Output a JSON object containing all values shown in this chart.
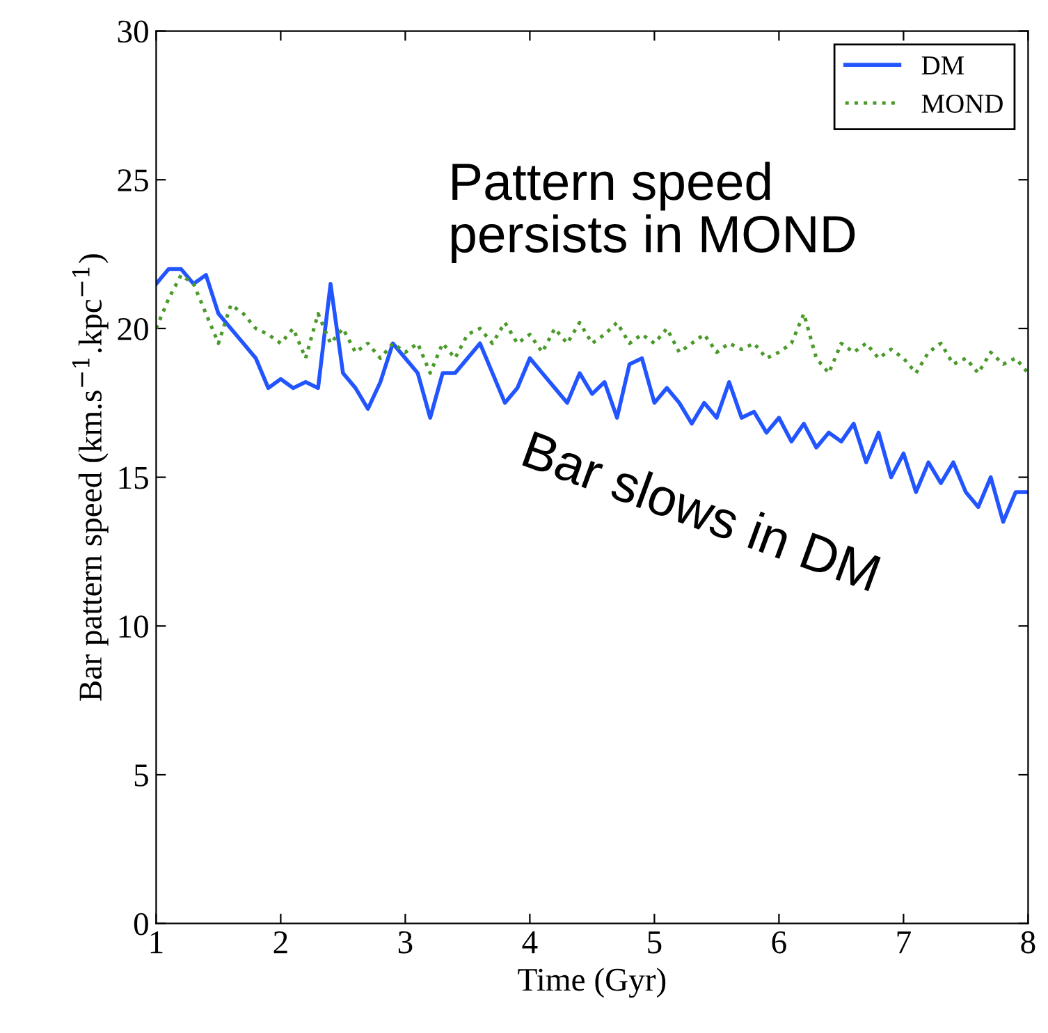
{
  "chart_data": {
    "type": "line",
    "xlabel": "Time (Gyr)",
    "ylabel": "Bar pattern speed (km.s$^{−1}$.kpc$^{−1}$)",
    "x": [
      1.0,
      1.1,
      1.2,
      1.3,
      1.4,
      1.5,
      1.6,
      1.7,
      1.8,
      1.9,
      2.0,
      2.1,
      2.2,
      2.3,
      2.4,
      2.5,
      2.6,
      2.7,
      2.8,
      2.9,
      3.0,
      3.1,
      3.2,
      3.3,
      3.4,
      3.5,
      3.6,
      3.7,
      3.8,
      3.9,
      4.0,
      4.1,
      4.2,
      4.3,
      4.4,
      4.5,
      4.6,
      4.7,
      4.8,
      4.9,
      5.0,
      5.1,
      5.2,
      5.3,
      5.4,
      5.5,
      5.6,
      5.7,
      5.8,
      5.9,
      6.0,
      6.1,
      6.2,
      6.3,
      6.4,
      6.5,
      6.6,
      6.7,
      6.8,
      6.9,
      7.0,
      7.1,
      7.2,
      7.3,
      7.4,
      7.5,
      7.6,
      7.7,
      7.8,
      7.9,
      8.0
    ],
    "series": [
      {
        "name": "DM",
        "color": "#2255ff",
        "line_style": "solid",
        "values": [
          21.5,
          22,
          22,
          21.5,
          21.8,
          20.5,
          20,
          19.5,
          19,
          18,
          18.3,
          18,
          18.2,
          18,
          21.5,
          18.5,
          18,
          17.3,
          18.2,
          19.5,
          19,
          18.5,
          17,
          18.5,
          18.5,
          19,
          19.5,
          18.5,
          17.5,
          18,
          19,
          18.5,
          18,
          17.5,
          18.5,
          17.8,
          18.2,
          17,
          18.8,
          19,
          17.5,
          18,
          17.5,
          16.8,
          17.5,
          17,
          18.2,
          17,
          17.2,
          16.5,
          17,
          16.2,
          16.8,
          16,
          16.5,
          16.2,
          16.8,
          15.5,
          16.5,
          15,
          15.8,
          14.5,
          15.5,
          14.8,
          15.5,
          14.5,
          14,
          15,
          13.5,
          14.5,
          14.5
        ]
      },
      {
        "name": "MOND",
        "color": "#4a9a2a",
        "line_style": "dotted",
        "values": [
          20,
          21,
          21.8,
          21.5,
          20.5,
          19.5,
          20.8,
          20.5,
          20,
          19.8,
          19.5,
          20,
          19,
          20.5,
          19.5,
          20,
          19.2,
          19.5,
          19,
          19.5,
          19.2,
          19.5,
          18.5,
          19.5,
          19,
          19.8,
          20,
          19.5,
          20.2,
          19.5,
          19.8,
          19.2,
          20,
          19.5,
          20.2,
          19.5,
          19.8,
          20.2,
          19.5,
          19.8,
          19.5,
          20,
          19.2,
          19.5,
          19.8,
          19.2,
          19.5,
          19.3,
          19.5,
          19,
          19.2,
          19.5,
          20.5,
          19,
          18.5,
          19.5,
          19.2,
          19.5,
          19,
          19.3,
          19,
          18.5,
          19.2,
          19.5,
          18.8,
          19,
          18.5,
          19.2,
          18.8,
          19,
          18.5
        ]
      }
    ],
    "xlim": [
      1,
      8
    ],
    "ylim": [
      0,
      30
    ],
    "xticks": [
      1,
      2,
      3,
      4,
      5,
      6,
      7,
      8
    ],
    "yticks": [
      0,
      5,
      10,
      15,
      20,
      25,
      30
    ],
    "legend": "top right",
    "grid": false,
    "annotations": [
      "Pattern speed\npersists in MOND",
      "Bar slows in DM"
    ]
  }
}
